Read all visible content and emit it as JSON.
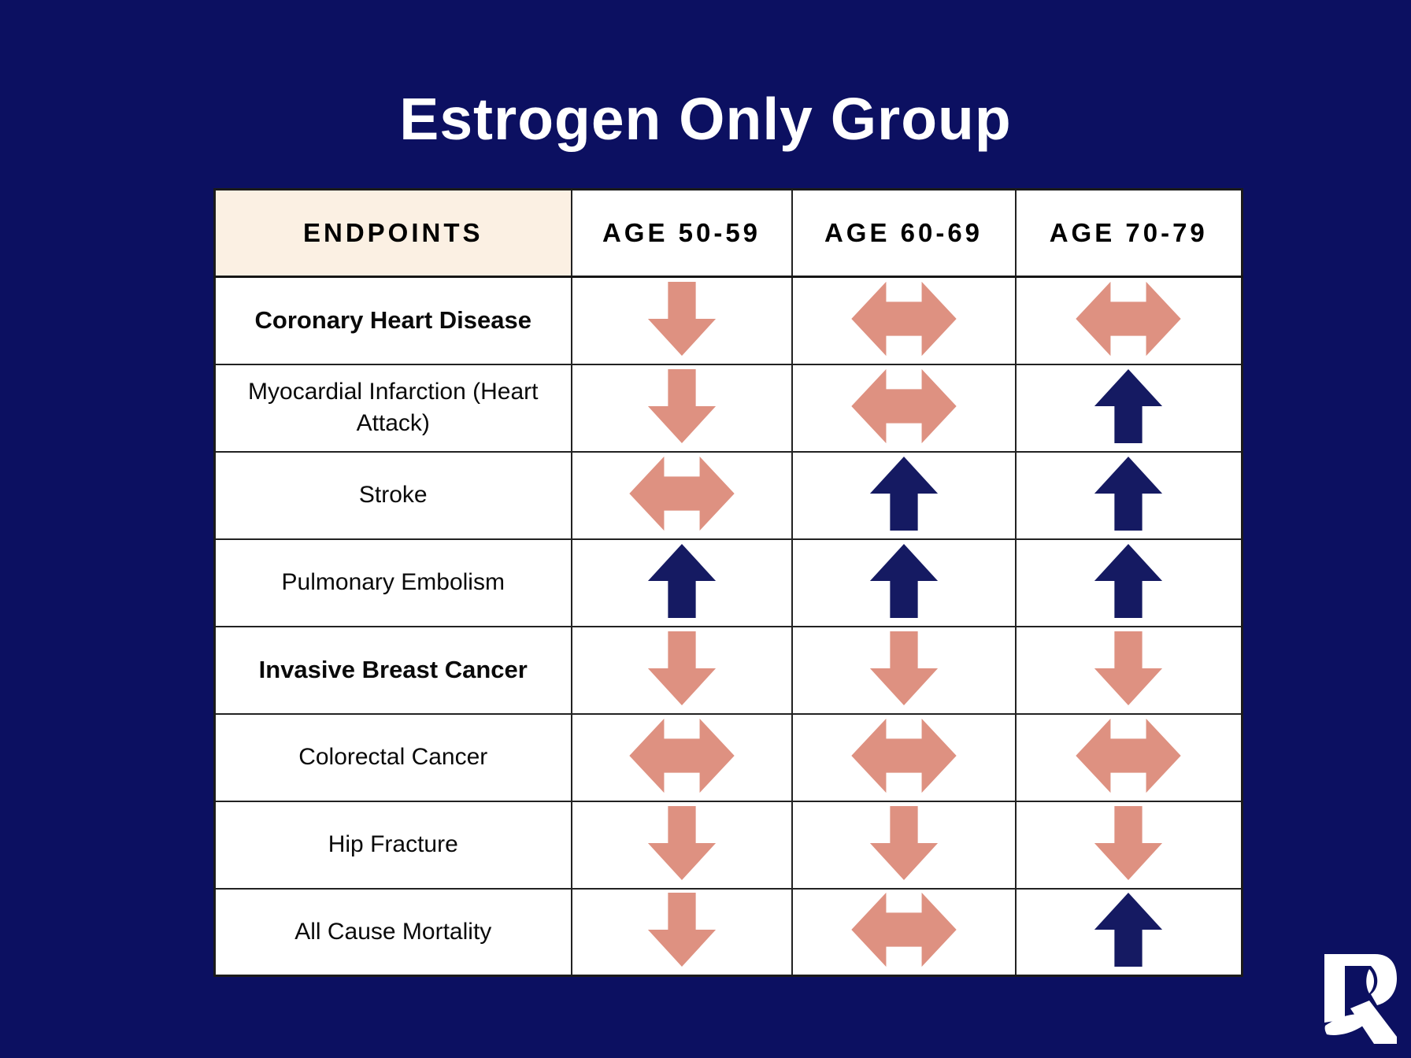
{
  "page": {
    "title": "Estrogen Only Group",
    "background_color": "#0c1061"
  },
  "table": {
    "header": {
      "endpoints_label": "ENDPOINTS",
      "age_columns": [
        "AGE 50-59",
        "AGE 60-69",
        "AGE 70-79"
      ],
      "endpoints_header_bg": "#fbf0e3"
    },
    "rows": [
      {
        "endpoint": "Coronary Heart Disease",
        "bold": true,
        "arrows": [
          "down",
          "left-right",
          "left-right"
        ]
      },
      {
        "endpoint": "Myocardial Infarction (Heart Attack)",
        "bold": false,
        "arrows": [
          "down",
          "left-right",
          "up"
        ]
      },
      {
        "endpoint": "Stroke",
        "bold": false,
        "arrows": [
          "left-right",
          "up",
          "up"
        ]
      },
      {
        "endpoint": "Pulmonary Embolism",
        "bold": false,
        "arrows": [
          "up",
          "up",
          "up"
        ]
      },
      {
        "endpoint": "Invasive Breast Cancer",
        "bold": true,
        "arrows": [
          "down",
          "down",
          "down"
        ]
      },
      {
        "endpoint": "Colorectal Cancer",
        "bold": false,
        "arrows": [
          "left-right",
          "left-right",
          "left-right"
        ]
      },
      {
        "endpoint": "Hip Fracture",
        "bold": false,
        "arrows": [
          "down",
          "down",
          "down"
        ]
      },
      {
        "endpoint": "All Cause Mortality",
        "bold": false,
        "arrows": [
          "down",
          "left-right",
          "up"
        ]
      }
    ],
    "arrow_colors": {
      "down": "#de9181",
      "left-right": "#de9181",
      "up": "#151a62"
    }
  },
  "logo": {
    "name": "r-leaf-logo"
  },
  "chart_data": {
    "type": "table",
    "title": "Estrogen Only Group",
    "columns": [
      "ENDPOINTS",
      "AGE 50-59",
      "AGE 60-69",
      "AGE 70-79"
    ],
    "rows": [
      [
        "Coronary Heart Disease",
        "down",
        "left-right",
        "left-right"
      ],
      [
        "Myocardial Infarction (Heart Attack)",
        "down",
        "left-right",
        "up"
      ],
      [
        "Stroke",
        "left-right",
        "up",
        "up"
      ],
      [
        "Pulmonary Embolism",
        "up",
        "up",
        "up"
      ],
      [
        "Invasive Breast Cancer",
        "down",
        "down",
        "down"
      ],
      [
        "Colorectal Cancer",
        "left-right",
        "left-right",
        "left-right"
      ],
      [
        "Hip Fracture",
        "down",
        "down",
        "down"
      ],
      [
        "All Cause Mortality",
        "down",
        "left-right",
        "up"
      ]
    ],
    "cell_encoding": "arrow direction: down = salmon down arrow, left-right = salmon double-headed horizontal arrow, up = navy up arrow"
  }
}
